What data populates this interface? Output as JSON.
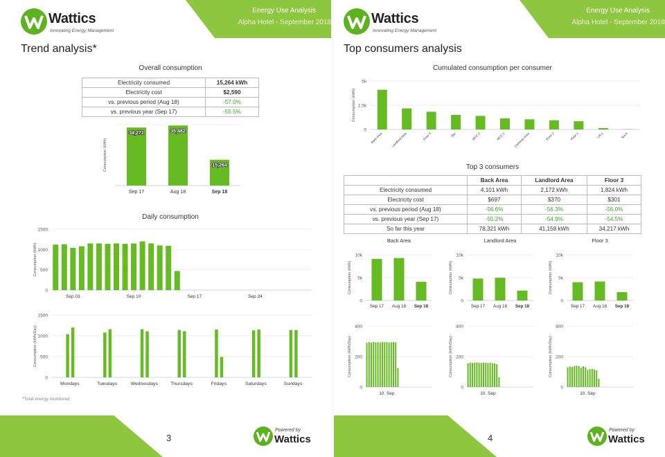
{
  "header": {
    "brand": "Wattics",
    "tagline": "Innovating Energy Management",
    "report_title": "Energy Use Analysis",
    "report_subtitle": "Alpha Hotel - September 2018"
  },
  "footer": {
    "powered_by": "Powered by",
    "powered_brand": "Wattics"
  },
  "colors": {
    "accent": "#8dc63f",
    "bar": "#66bb22",
    "pct": "#3aa42a"
  },
  "page3": {
    "title": "Trend analysis*",
    "page_number": "3",
    "footnote": "*Total energy monitored",
    "overall": {
      "title": "Overall consumption",
      "rows": [
        {
          "label": "Electricity consumed",
          "value": "15,264 kWh"
        },
        {
          "label": "Electricity cost",
          "value": "$2,590"
        },
        {
          "label": "vs. previous period (Aug 18)",
          "value": "-57.0%"
        },
        {
          "label": "vs. previous year (Sep 17)",
          "value": "-55.5%"
        }
      ]
    },
    "daily_title": "Daily consumption"
  },
  "page4": {
    "title": "Top consumers analysis",
    "page_number": "4",
    "cumulated_title": "Cumulated consumption per consumer",
    "top3_title": "Top 3 consumers",
    "top3": {
      "headers": [
        "",
        "Back Area",
        "Landlord Area",
        "Floor 3"
      ],
      "rows": [
        {
          "label": "Electricity consumed",
          "values": [
            "4,101 kWh",
            "2,172 kWh",
            "1,824 kWh"
          ]
        },
        {
          "label": "Electricity cost",
          "values": [
            "$697",
            "$370",
            "$301"
          ]
        },
        {
          "label": "vs. previous period (Aug 18)",
          "values": [
            "-56.6%",
            "-56.3%",
            "-56.0%"
          ]
        },
        {
          "label": "vs. previous year (Sep 17)",
          "values": [
            "-55.2%",
            "-54.9%",
            "-54.5%"
          ]
        },
        {
          "label": "So far this year",
          "values": [
            "78,321 kWh",
            "41,158 kWh",
            "34,217 kWh"
          ]
        }
      ]
    }
  },
  "chart_data": [
    {
      "id": "overall",
      "type": "bar",
      "categories": [
        "Sep 17",
        "Aug 18",
        "Sep 18"
      ],
      "values": [
        34271,
        35482,
        15264
      ],
      "data_labels": [
        "34,271",
        "35,482",
        "15,264"
      ],
      "ylabel": "Consumption (kWh)",
      "ylim": [
        0,
        36000
      ],
      "bold_category": "Sep 18"
    },
    {
      "id": "daily",
      "type": "bar",
      "ylabel": "Consumption (kWh)",
      "ylim": [
        0,
        1500
      ],
      "yticks": [
        0,
        500,
        1000,
        1500
      ],
      "x_tick_labels": [
        "Sep 03",
        "Sep 10",
        "Sep 17",
        "Sep 24"
      ],
      "x_tick_index": [
        2,
        9,
        16,
        23
      ],
      "days": 30,
      "values": [
        1120,
        1130,
        1040,
        1080,
        1150,
        1150,
        1140,
        1150,
        1140,
        1150,
        1200,
        1150,
        1100,
        1090,
        470
      ]
    },
    {
      "id": "weekday",
      "type": "bar",
      "ylabel": "Consumption (kWh/Day)",
      "ylim": [
        0,
        1500
      ],
      "yticks": [
        0,
        500,
        1000,
        1500
      ],
      "categories": [
        "Mondays",
        "Tuesdays",
        "Wednesdays",
        "Thursdays",
        "Fridays",
        "Saturdays",
        "Sundays"
      ],
      "series": [
        {
          "values": [
            1040,
            1080,
            1160,
            1140,
            1150,
            1130,
            1140
          ]
        },
        {
          "values": [
            1200,
            1160,
            1110,
            1110,
            490,
            1150,
            1140
          ]
        }
      ]
    },
    {
      "id": "cumulated",
      "type": "bar",
      "ylabel": "Consumption (kWh)",
      "ylim": [
        0,
        5000
      ],
      "yticks": [
        0,
        2500,
        5000
      ],
      "ytick_labels": [
        "0",
        "2.5k",
        "5k"
      ],
      "categories": [
        "Back Area",
        "Landlord Area",
        "Floor 3",
        "Bar",
        "MCC 2",
        "MCC 1",
        "Common Area",
        "Floor 2",
        "Floor 1",
        "Lift 1",
        "Tea 6"
      ],
      "values": [
        4101,
        2172,
        1824,
        1500,
        1400,
        1150,
        1050,
        950,
        850,
        150,
        30
      ]
    },
    {
      "id": "back_area_trend",
      "type": "bar",
      "title": "Back Area",
      "ylabel": "Consumption (kWh)",
      "ylim": [
        0,
        10000
      ],
      "yticks": [
        0,
        5000,
        10000
      ],
      "ytick_labels": [
        "0",
        "5k",
        "10k"
      ],
      "categories": [
        "Sep 17",
        "Aug 18",
        "Sep 18"
      ],
      "values": [
        9100,
        9300,
        4101
      ]
    },
    {
      "id": "landlord_area_trend",
      "type": "bar",
      "title": "Landlord Area",
      "ylabel": "Consumption (kWh)",
      "ylim": [
        0,
        10000
      ],
      "yticks": [
        0,
        5000,
        10000
      ],
      "ytick_labels": [
        "0",
        "5k",
        "10k"
      ],
      "categories": [
        "Sep 17",
        "Aug 18",
        "Sep 18"
      ],
      "values": [
        4800,
        4970,
        2172
      ]
    },
    {
      "id": "floor3_trend",
      "type": "bar",
      "title": "Floor 3",
      "ylabel": "Consumption (kWh)",
      "ylim": [
        0,
        10000
      ],
      "yticks": [
        0,
        5000,
        10000
      ],
      "ytick_labels": [
        "0",
        "5k",
        "10k"
      ],
      "categories": [
        "Sep 17",
        "Aug 18",
        "Sep 18"
      ],
      "values": [
        4000,
        4170,
        1824
      ]
    },
    {
      "id": "back_area_daily",
      "type": "bar",
      "ylabel": "Consumption (kWh/Day)",
      "ylim": [
        0,
        400
      ],
      "yticks": [
        0,
        200,
        400
      ],
      "x_tick_label": "10. Sep",
      "days": 30,
      "values": [
        290,
        295,
        292,
        296,
        294,
        295,
        293,
        297,
        294,
        296,
        292,
        295,
        296,
        294,
        125
      ]
    },
    {
      "id": "landlord_area_daily",
      "type": "bar",
      "ylabel": "Consumption (kWh/Day)",
      "ylim": [
        0,
        400
      ],
      "yticks": [
        0,
        200,
        400
      ],
      "x_tick_label": "10. Sep",
      "days": 30,
      "values": [
        155,
        160,
        158,
        160,
        162,
        160,
        159,
        161,
        160,
        158,
        160,
        157,
        155,
        150,
        65
      ]
    },
    {
      "id": "floor3_daily",
      "type": "bar",
      "ylabel": "Consumption (kWh/Day)",
      "ylim": [
        0,
        400
      ],
      "yticks": [
        0,
        200,
        400
      ],
      "x_tick_label": "10. Sep",
      "days": 30,
      "values": [
        130,
        135,
        132,
        138,
        140,
        138,
        128,
        136,
        130,
        112,
        118,
        120,
        115,
        110,
        55
      ]
    }
  ]
}
